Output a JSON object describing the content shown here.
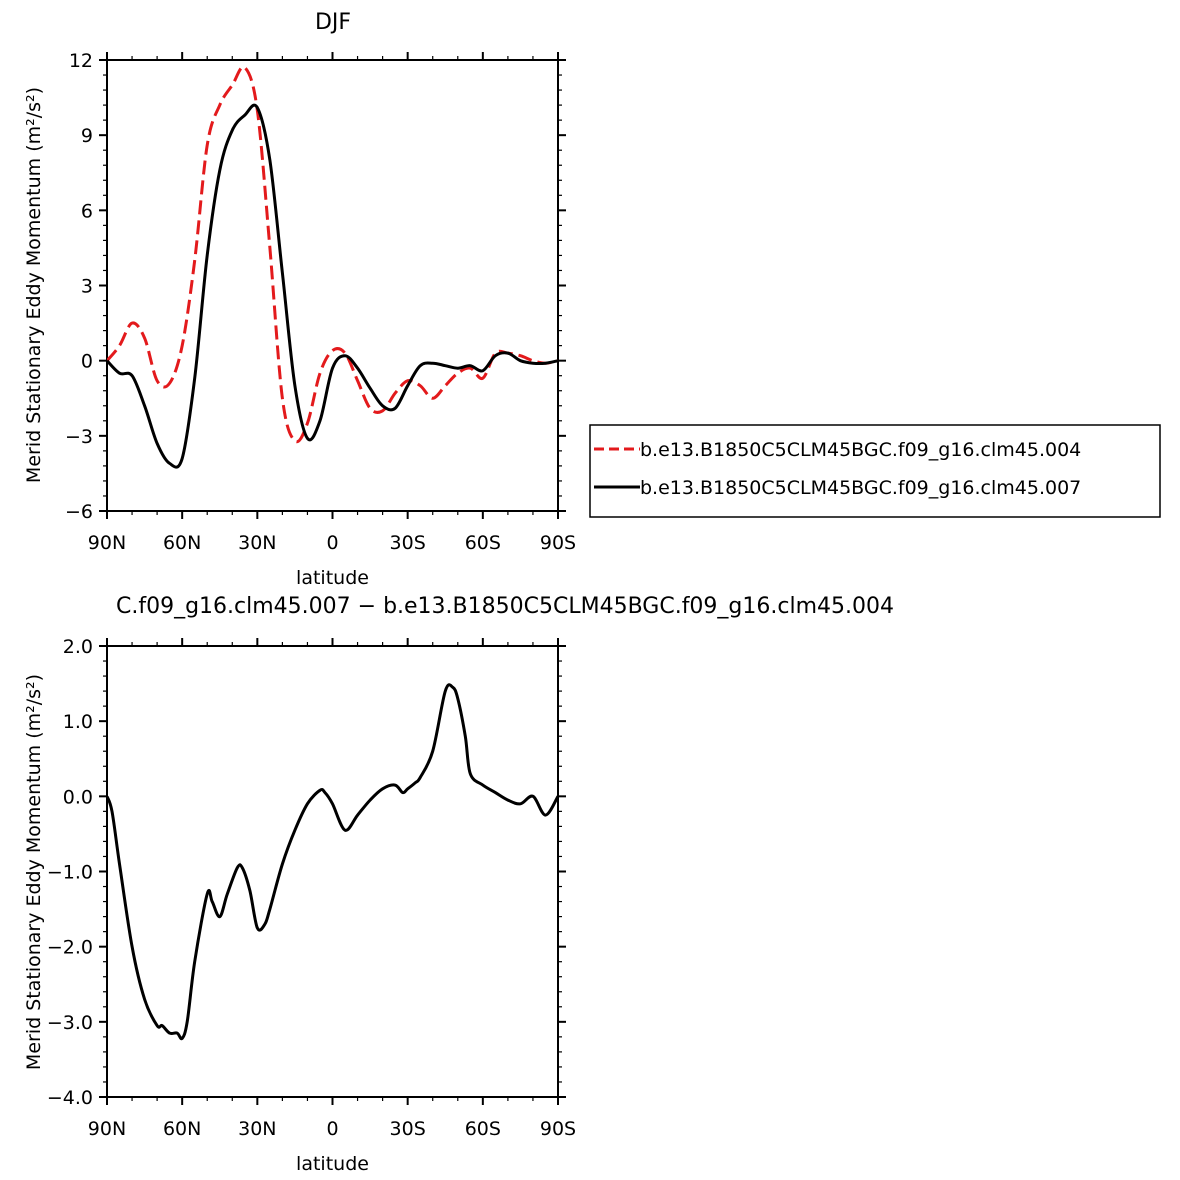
{
  "chart_data": [
    {
      "type": "line",
      "title": "DJF",
      "xlabel": "latitude",
      "ylabel": "Merid Stationary Eddy Momentum (m²/s²)",
      "xlim": [
        90,
        -90
      ],
      "ylim": [
        -6,
        12
      ],
      "x_tick_values": [
        90,
        60,
        30,
        0,
        -30,
        -60,
        -90
      ],
      "x_tick_labels": [
        "90N",
        "60N",
        "30N",
        "0",
        "30S",
        "60S",
        "90S"
      ],
      "y_tick_values": [
        -6,
        -3,
        0,
        3,
        6,
        9,
        12
      ],
      "y_tick_labels": [
        "−6",
        "−3",
        "0",
        "3",
        "6",
        "9",
        "12"
      ],
      "legend_position": "right",
      "x": [
        90,
        85,
        80,
        75,
        70,
        65,
        60,
        55,
        50,
        45,
        40,
        35,
        30,
        25,
        20,
        15,
        10,
        5,
        0,
        -5,
        -10,
        -15,
        -20,
        -25,
        -30,
        -35,
        -40,
        -45,
        -50,
        -55,
        -60,
        -65,
        -70,
        -75,
        -80,
        -85,
        -90
      ],
      "series": [
        {
          "name": "b.e13.B1850C5CLM45BGC.f09_g16.clm45.004",
          "color": "#e31a1c",
          "dash": "dashed",
          "values": [
            0,
            0.6,
            1.5,
            0.9,
            -0.8,
            -0.9,
            0.6,
            4.0,
            8.6,
            10.2,
            11.0,
            11.7,
            10.0,
            4.5,
            -1.5,
            -3.2,
            -2.5,
            -0.5,
            0.4,
            0.3,
            -0.8,
            -1.9,
            -2.0,
            -1.3,
            -0.8,
            -1.0,
            -1.5,
            -1.0,
            -0.5,
            -0.3,
            -0.7,
            0.3,
            0.3,
            0.2,
            0.0,
            -0.1,
            0
          ]
        },
        {
          "name": "b.e13.B1850C5CLM45BGC.f09_g16.clm45.007",
          "color": "#000000",
          "dash": "solid",
          "values": [
            0,
            -0.5,
            -0.6,
            -1.8,
            -3.3,
            -4.1,
            -3.9,
            -0.7,
            4.2,
            7.6,
            9.2,
            9.8,
            10.1,
            8.0,
            3.5,
            -1.0,
            -3.1,
            -2.4,
            -0.3,
            0.2,
            -0.3,
            -1.1,
            -1.8,
            -1.9,
            -1.0,
            -0.2,
            -0.1,
            -0.2,
            -0.3,
            -0.2,
            -0.4,
            0.2,
            0.3,
            0.0,
            -0.1,
            -0.1,
            0
          ]
        }
      ]
    },
    {
      "type": "line",
      "title": "C.f09_g16.clm45.007 − b.e13.B1850C5CLM45BGC.f09_g16.clm45.004",
      "xlabel": "latitude",
      "ylabel": "Merid Stationary Eddy Momentum (m²/s²)",
      "xlim": [
        90,
        -90
      ],
      "ylim": [
        -4.0,
        2.0
      ],
      "x_tick_values": [
        90,
        60,
        30,
        0,
        -30,
        -60,
        -90
      ],
      "x_tick_labels": [
        "90N",
        "60N",
        "30N",
        "0",
        "30S",
        "60S",
        "90S"
      ],
      "y_tick_values": [
        -4.0,
        -3.0,
        -2.0,
        -1.0,
        0.0,
        1.0,
        2.0
      ],
      "y_tick_labels": [
        "−4.0",
        "−3.0",
        "−2.0",
        "−1.0",
        "0.0",
        "1.0",
        "2.0"
      ],
      "x": [
        90,
        88,
        85,
        80,
        75,
        70,
        68,
        65,
        62,
        60,
        58,
        55,
        50,
        48,
        45,
        42,
        38,
        36,
        33,
        30,
        27,
        25,
        20,
        15,
        10,
        5,
        3,
        0,
        -5,
        -10,
        -15,
        -20,
        -25,
        -28,
        -30,
        -33,
        -35,
        -40,
        -45,
        -48,
        -50,
        -53,
        -55,
        -60,
        -65,
        -70,
        -75,
        -80,
        -85,
        -90
      ],
      "series": [
        {
          "name": "",
          "color": "#000000",
          "dash": "solid",
          "values": [
            0,
            -0.2,
            -0.9,
            -2.0,
            -2.7,
            -3.05,
            -3.05,
            -3.15,
            -3.15,
            -3.22,
            -3.0,
            -2.2,
            -1.3,
            -1.4,
            -1.6,
            -1.3,
            -0.95,
            -0.95,
            -1.25,
            -1.75,
            -1.7,
            -1.5,
            -0.9,
            -0.45,
            -0.1,
            0.08,
            0.05,
            -0.1,
            -0.45,
            -0.25,
            -0.05,
            0.1,
            0.15,
            0.05,
            0.1,
            0.18,
            0.25,
            0.6,
            1.4,
            1.45,
            1.3,
            0.8,
            0.3,
            0.15,
            0.05,
            -0.05,
            -0.1,
            0.0,
            -0.25,
            0
          ]
        }
      ]
    }
  ]
}
